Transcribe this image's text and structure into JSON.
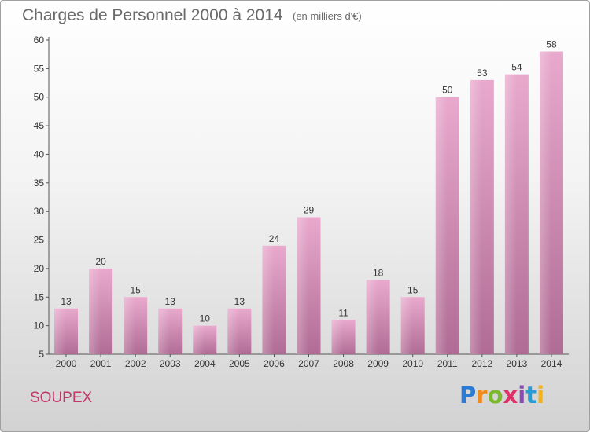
{
  "header": {
    "title": "Charges de Personnel 2000 à 2014",
    "subtitle": "(en milliers d'€)"
  },
  "footer": {
    "commune": "SOUPEX",
    "brand_letters": [
      "P",
      "r",
      "o",
      "x",
      "i",
      "t",
      "i"
    ],
    "brand_colors": [
      "#2b7bd6",
      "#f08a1e",
      "#7ab92b",
      "#e0306a",
      "#8a4ab8",
      "#2b9bd6",
      "#f0b21e"
    ]
  },
  "chart_data": {
    "type": "bar",
    "title": "Charges de Personnel 2000 à 2014",
    "subtitle": "(en milliers d'€)",
    "categories": [
      "2000",
      "2001",
      "2002",
      "2003",
      "2004",
      "2005",
      "2006",
      "2007",
      "2008",
      "2009",
      "2010",
      "2011",
      "2012",
      "2013",
      "2014"
    ],
    "values": [
      13,
      20,
      15,
      13,
      10,
      13,
      24,
      29,
      11,
      18,
      15,
      50,
      53,
      54,
      58
    ],
    "ylim": [
      5,
      60
    ],
    "yticks": [
      5,
      10,
      15,
      20,
      25,
      30,
      35,
      40,
      45,
      50,
      55,
      60
    ],
    "grid": false,
    "bar_color": "#d98bb6",
    "bar_color_light": "#e8a8cc",
    "bar_color_dark": "#b56f98"
  }
}
